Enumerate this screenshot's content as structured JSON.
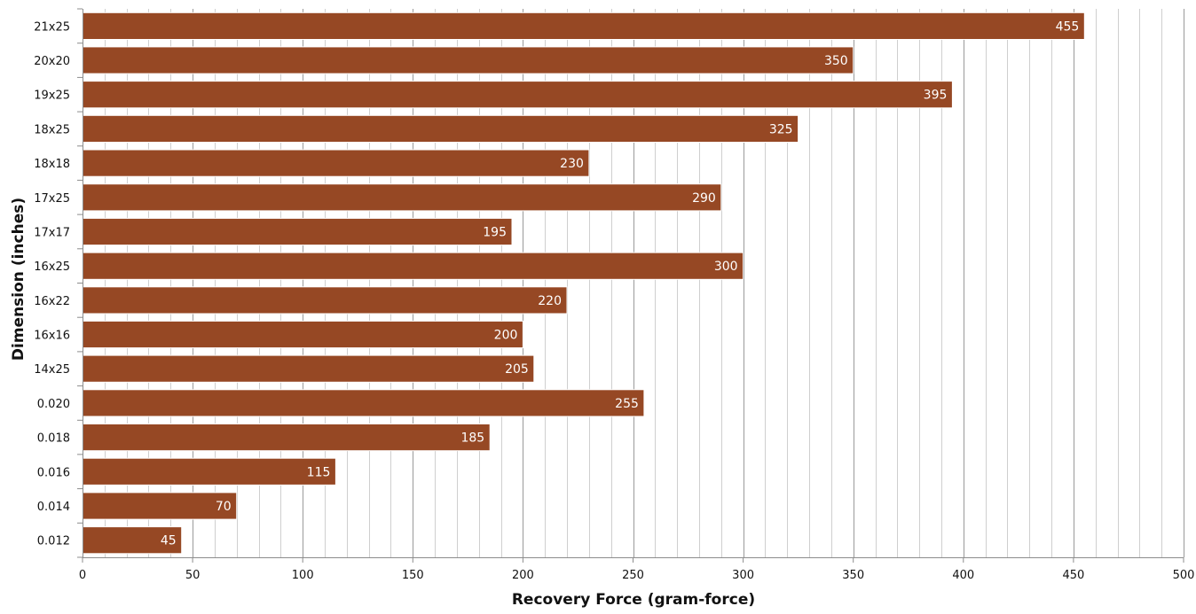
{
  "chart_data": {
    "type": "bar",
    "orientation": "horizontal",
    "categories": [
      "21x25",
      "20x20",
      "19x25",
      "18x25",
      "18x18",
      "17x25",
      "17x17",
      "16x25",
      "16x22",
      "16x16",
      "14x25",
      "0.020",
      "0.018",
      "0.016",
      "0.014",
      "0.012"
    ],
    "values": [
      455,
      350,
      395,
      325,
      230,
      290,
      195,
      300,
      220,
      200,
      205,
      255,
      185,
      115,
      70,
      45
    ],
    "xlabel": "Recovery Force (gram-force)",
    "ylabel": "Dimension (inches)",
    "xlim": [
      0,
      500
    ],
    "xticks": [
      0,
      50,
      100,
      150,
      200,
      250,
      300,
      350,
      400,
      450,
      500
    ],
    "minor_step": 10,
    "grid": true,
    "data_labels": true,
    "colors": {
      "bar": "#964824",
      "bar_edge": "#ffffff",
      "grid_major": "#9a9a9a",
      "grid_minor": "#cfcfcf",
      "axis": "#8c8c8c",
      "label": "#ffffff"
    }
  }
}
